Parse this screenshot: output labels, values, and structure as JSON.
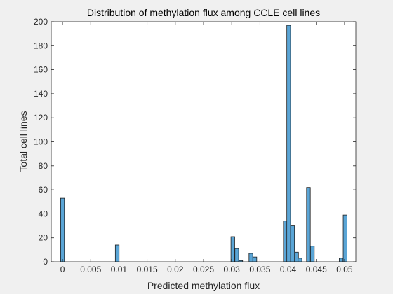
{
  "chart_data": {
    "type": "bar",
    "title": "Distribution of methylation flux among CCLE cell lines",
    "xlabel": "Predicted methylation flux",
    "ylabel": "Total cell lines",
    "xlim": [
      -0.002,
      0.052
    ],
    "ylim": [
      0,
      200
    ],
    "xticks": [
      0,
      0.005,
      0.01,
      0.015,
      0.02,
      0.025,
      0.03,
      0.035,
      0.04,
      0.045,
      0.05
    ],
    "xtick_labels": [
      "0",
      "0.005",
      "0.01",
      "0.015",
      "0.02",
      "0.025",
      "0.03",
      "0.035",
      "0.04",
      "0.045",
      "0.05"
    ],
    "yticks": [
      0,
      20,
      40,
      60,
      80,
      100,
      120,
      140,
      160,
      180,
      200
    ],
    "ytick_labels": [
      "0",
      "20",
      "40",
      "60",
      "80",
      "100",
      "120",
      "140",
      "160",
      "180",
      "200"
    ],
    "bin_width": 0.00067,
    "bins": [
      {
        "x": 0.0,
        "count": 53
      },
      {
        "x": 0.0097,
        "count": 14
      },
      {
        "x": 0.0302,
        "count": 21
      },
      {
        "x": 0.0309,
        "count": 11
      },
      {
        "x": 0.0316,
        "count": 1
      },
      {
        "x": 0.0334,
        "count": 7
      },
      {
        "x": 0.0341,
        "count": 4
      },
      {
        "x": 0.0395,
        "count": 34
      },
      {
        "x": 0.0401,
        "count": 197
      },
      {
        "x": 0.0408,
        "count": 30
      },
      {
        "x": 0.0415,
        "count": 8
      },
      {
        "x": 0.0421,
        "count": 3
      },
      {
        "x": 0.0436,
        "count": 62
      },
      {
        "x": 0.0443,
        "count": 13
      },
      {
        "x": 0.0494,
        "count": 3
      },
      {
        "x": 0.0501,
        "count": 39
      }
    ],
    "grid": false,
    "legend": "none",
    "bar_color": "#5aa5d6",
    "bar_edge_color": "#1f1f1f"
  }
}
